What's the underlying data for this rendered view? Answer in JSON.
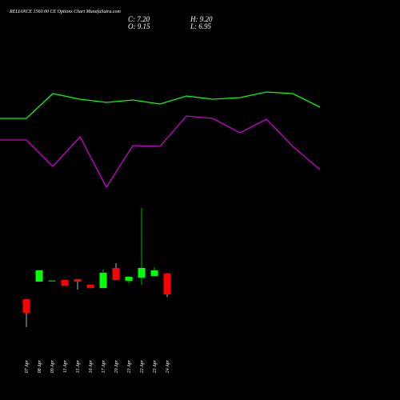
{
  "chart_data": {
    "type": "candlestick",
    "title": "RELIANCE 1560.00 CE Options Chart MunafaSutra.com",
    "ohlc_labels": [
      "C: 7.20",
      "H: 9.20",
      "O: 9.15",
      "L: 6.95"
    ],
    "categories": [
      "07 Apr",
      "08 Apr",
      "09 Apr",
      "11 Apr",
      "15 Apr",
      "16 Apr",
      "17 Apr",
      "20 Apr",
      "21 Apr",
      "22 Apr",
      "23 Apr",
      "24 Apr"
    ],
    "open": [
      6.75,
      8.4,
      8.45,
      8.55,
      8.63,
      8.1,
      7.8,
      9.68,
      8.48,
      8.78,
      8.93,
      9.15
    ],
    "high": [
      6.75,
      9.45,
      8.5,
      8.55,
      8.63,
      8.1,
      9.53,
      10.13,
      8.85,
      15.3,
      9.75,
      9.2
    ],
    "low": [
      4.13,
      8.4,
      8.45,
      8.03,
      7.65,
      7.8,
      7.8,
      8.55,
      8.25,
      8.1,
      8.93,
      6.95
    ],
    "close": [
      5.48,
      9.45,
      8.5,
      8.03,
      8.4,
      7.8,
      9.23,
      8.55,
      8.85,
      9.68,
      9.45,
      7.2
    ],
    "up_color": "#00ff00",
    "down_color": "#ff0000",
    "ylim": [
      -2.7,
      34.8
    ],
    "overlay": {
      "x": [
        0,
        33,
        66,
        100,
        133,
        166,
        200,
        233,
        266,
        300,
        333,
        366,
        400
      ],
      "ylim": [
        0,
        500
      ],
      "series": [
        {
          "color": "#00ff00",
          "values": [
            352,
            352,
            383,
            376,
            372,
            375,
            370,
            380,
            376,
            378,
            385,
            383,
            366
          ]
        },
        {
          "color": "#cc00cc",
          "values": [
            325,
            325,
            292,
            329,
            266,
            318,
            317,
            355,
            352,
            334,
            351,
            317,
            288
          ]
        }
      ]
    }
  }
}
